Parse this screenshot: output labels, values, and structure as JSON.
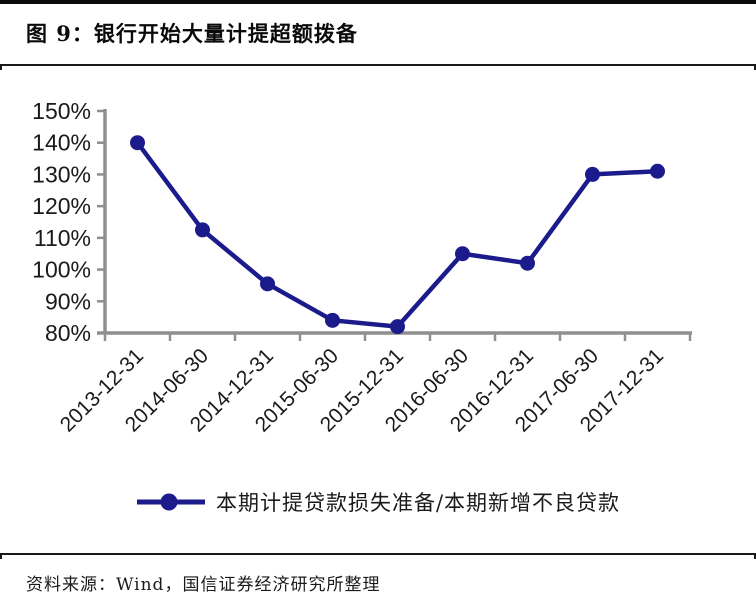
{
  "figure": {
    "title": "图 9：银行开始大量计提超额拨备",
    "source": "资料来源：Wind，国信证券经济研究所整理"
  },
  "chart_data": {
    "type": "line",
    "title": "图 9：银行开始大量计提超额拨备",
    "categories": [
      "2013-12-31",
      "2014-06-30",
      "2014-12-31",
      "2015-06-30",
      "2015-12-31",
      "2016-06-30",
      "2016-12-31",
      "2017-06-30",
      "2017-12-31"
    ],
    "series": [
      {
        "name": "本期计提贷款损失准备/本期新增不良贷款",
        "values": [
          140,
          112.5,
          95.5,
          84,
          82,
          105,
          102,
          130,
          131
        ]
      }
    ],
    "ylim": [
      80,
      150
    ],
    "ytick_step": 10,
    "ytick_suffix": "%",
    "grid": false,
    "legend_position": "bottom",
    "x_label_rotation_deg": -45,
    "colors": {
      "line": "#1b1b8c",
      "axis": "#8f8f8f",
      "tick_text": "#1a1a1a"
    }
  }
}
